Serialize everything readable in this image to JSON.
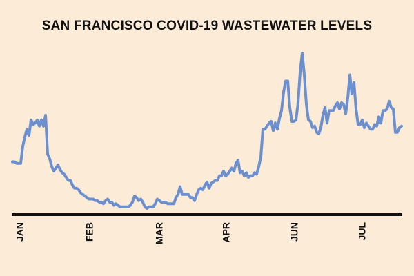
{
  "chart_data": {
    "type": "line",
    "title": "SAN FRANCISCO COVID-19 WASTEWATER LEVELS",
    "xlabel": "",
    "ylabel": "",
    "x_tick_labels": [
      "JAN",
      "FEB",
      "MAR",
      "APR",
      "JUN",
      "JUL"
    ],
    "y_axis_visible": false,
    "y_tick_labels": [],
    "grid": false,
    "legend": "none",
    "colors": {
      "background": "#fbebd7",
      "line": "#6b8fcf",
      "axis": "#111111",
      "text": "#111111"
    },
    "series": [
      {
        "values": [
          0.3,
          0.3,
          0.29,
          0.29,
          0.29,
          0.4,
          0.46,
          0.51,
          0.47,
          0.57,
          0.54,
          0.55,
          0.57,
          0.53,
          0.57,
          0.53,
          0.6,
          0.35,
          0.32,
          0.27,
          0.24,
          0.26,
          0.28,
          0.25,
          0.23,
          0.22,
          0.2,
          0.18,
          0.18,
          0.15,
          0.13,
          0.13,
          0.12,
          0.1,
          0.09,
          0.08,
          0.07,
          0.06,
          0.06,
          0.06,
          0.05,
          0.05,
          0.04,
          0.04,
          0.03,
          0.05,
          0.06,
          0.04,
          0.04,
          0.02,
          0.03,
          0.02,
          0.01,
          0.01,
          0.01,
          0.01,
          0.01,
          0.02,
          0.04,
          0.08,
          0.07,
          0.05,
          0.06,
          0.04,
          0.01,
          0.0,
          0.01,
          0.01,
          0.01,
          0.03,
          0.06,
          0.05,
          0.04,
          0.04,
          0.04,
          0.03,
          0.03,
          0.03,
          0.03,
          0.07,
          0.09,
          0.14,
          0.09,
          0.09,
          0.09,
          0.09,
          0.07,
          0.07,
          0.05,
          0.09,
          0.12,
          0.13,
          0.12,
          0.15,
          0.17,
          0.13,
          0.16,
          0.17,
          0.18,
          0.18,
          0.21,
          0.21,
          0.24,
          0.21,
          0.22,
          0.24,
          0.26,
          0.24,
          0.29,
          0.31,
          0.23,
          0.24,
          0.21,
          0.23,
          0.2,
          0.21,
          0.21,
          0.23,
          0.22,
          0.27,
          0.33,
          0.51,
          0.51,
          0.53,
          0.55,
          0.56,
          0.5,
          0.55,
          0.51,
          0.58,
          0.63,
          0.75,
          0.82,
          0.82,
          0.65,
          0.56,
          0.56,
          0.57,
          0.68,
          0.88,
          1.0,
          0.86,
          0.67,
          0.57,
          0.56,
          0.52,
          0.53,
          0.49,
          0.48,
          0.52,
          0.6,
          0.65,
          0.55,
          0.63,
          0.63,
          0.63,
          0.66,
          0.68,
          0.64,
          0.68,
          0.67,
          0.61,
          0.71,
          0.86,
          0.74,
          0.81,
          0.64,
          0.54,
          0.54,
          0.57,
          0.52,
          0.55,
          0.53,
          0.51,
          0.51,
          0.54,
          0.53,
          0.59,
          0.55,
          0.63,
          0.63,
          0.64,
          0.69,
          0.65,
          0.64,
          0.49,
          0.49,
          0.52,
          0.53
        ]
      }
    ]
  }
}
